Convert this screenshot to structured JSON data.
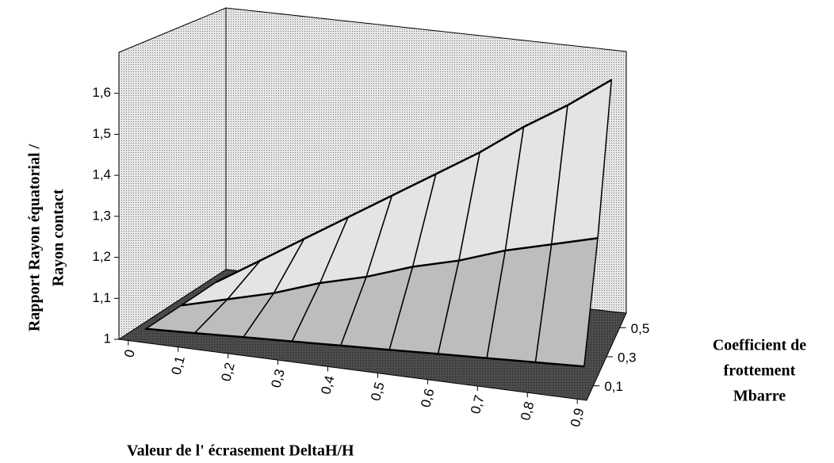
{
  "chart_data": {
    "type": "surface",
    "z_axis_label": [
      "Rapport Rayon équatorial /",
      "Rayon contact"
    ],
    "x_axis_label": "Valeur de l' écrasement DeltaH/H",
    "depth_axis_label": [
      "Coefficient de",
      "frottement",
      "Mbarre"
    ],
    "categories": [
      "0",
      "0,1",
      "0,2",
      "0,3",
      "0,4",
      "0,5",
      "0,6",
      "0,7",
      "0,8",
      "0,9"
    ],
    "series": [
      {
        "name": "0,1",
        "values": [
          1,
          1.005,
          1.01,
          1.015,
          1.02,
          1.025,
          1.03,
          1.035,
          1.04,
          1.045
        ]
      },
      {
        "name": "0,3",
        "values": [
          1,
          1.03,
          1.06,
          1.1,
          1.13,
          1.17,
          1.2,
          1.24,
          1.27,
          1.3
        ]
      },
      {
        "name": "0,5",
        "values": [
          1,
          1.07,
          1.14,
          1.21,
          1.28,
          1.35,
          1.42,
          1.5,
          1.57,
          1.65
        ]
      }
    ],
    "zlim": [
      1,
      1.7
    ],
    "zticks": [
      1,
      {
        "value": 1.1,
        "label": "1,1"
      },
      {
        "value": 1.2,
        "label": "1,2"
      },
      {
        "value": 1.3,
        "label": "1,3"
      },
      {
        "value": 1.4,
        "label": "1,4"
      },
      {
        "value": 1.5,
        "label": "1,5"
      },
      {
        "value": 1.6,
        "label": "1,6"
      }
    ]
  }
}
